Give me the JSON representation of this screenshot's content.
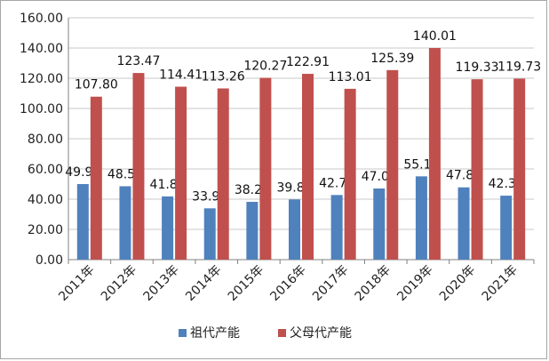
{
  "chart_data": {
    "type": "bar",
    "categories": [
      "2011年",
      "2012年",
      "2013年",
      "2014年",
      "2015年",
      "2016年",
      "2017年",
      "2018年",
      "2019年",
      "2020年",
      "2021年"
    ],
    "series": [
      {
        "name": "祖代产能",
        "color": "#4f81bd",
        "values": [
          49.99,
          48.55,
          41.82,
          33.94,
          38.22,
          39.83,
          42.75,
          47.07,
          55.1,
          47.82,
          42.32
        ]
      },
      {
        "name": "父母代产能",
        "color": "#c0504d",
        "values": [
          107.8,
          123.47,
          114.41,
          113.26,
          120.27,
          122.91,
          113.01,
          125.39,
          140.01,
          119.33,
          119.73
        ]
      }
    ],
    "ylim": [
      0,
      160
    ],
    "yticks": [
      "0.00",
      "20.00",
      "40.00",
      "60.00",
      "80.00",
      "100.00",
      "120.00",
      "140.00",
      "160.00"
    ],
    "grid": true,
    "legend_position": "bottom"
  }
}
